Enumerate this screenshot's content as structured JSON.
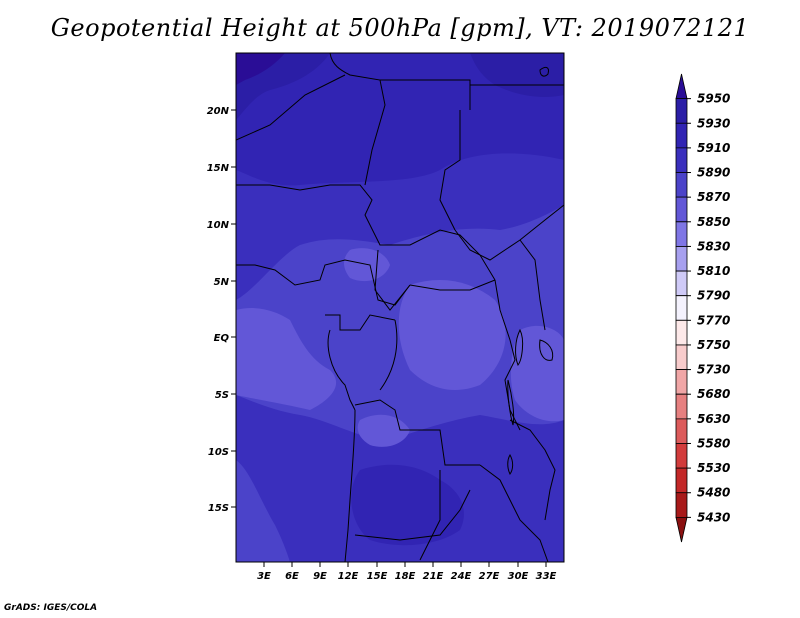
{
  "title": "Geopotential Height at 500hPa [gpm], VT: 2019072121",
  "credit": "GrADS: IGES/COLA",
  "map": {
    "lat_labels": [
      "20N",
      "15N",
      "10N",
      "5N",
      "EQ",
      "5S",
      "10S",
      "15S"
    ],
    "lon_labels": [
      "3E",
      "6E",
      "9E",
      "12E",
      "15E",
      "18E",
      "21E",
      "24E",
      "27E",
      "30E",
      "33E"
    ]
  },
  "colorbar": {
    "levels": [
      "5950",
      "5930",
      "5910",
      "5890",
      "5870",
      "5850",
      "5830",
      "5810",
      "5790",
      "5770",
      "5750",
      "5730",
      "5680",
      "5630",
      "5580",
      "5530",
      "5480",
      "5430"
    ],
    "colors": [
      "#2a0d96",
      "#2b1ea6",
      "#3124b3",
      "#3a2fbd",
      "#4b43c9",
      "#6257d7",
      "#7f76e5",
      "#a7a0ef",
      "#cfcaf7",
      "#f4f2fd",
      "#fde9e9",
      "#f8cccc",
      "#f0a6a6",
      "#e68080",
      "#dc5b5b",
      "#d23c3c",
      "#c32828",
      "#a81a1a",
      "#8a1010"
    ]
  },
  "colors": {
    "land_base": "#3a2fbd",
    "zone_5870": "#4b43c9",
    "zone_5850": "#6257d7",
    "zone_5910": "#3124b3",
    "zone_5930": "#2b1ea6",
    "zone_5950": "#2a0d96",
    "border": "#000000"
  }
}
